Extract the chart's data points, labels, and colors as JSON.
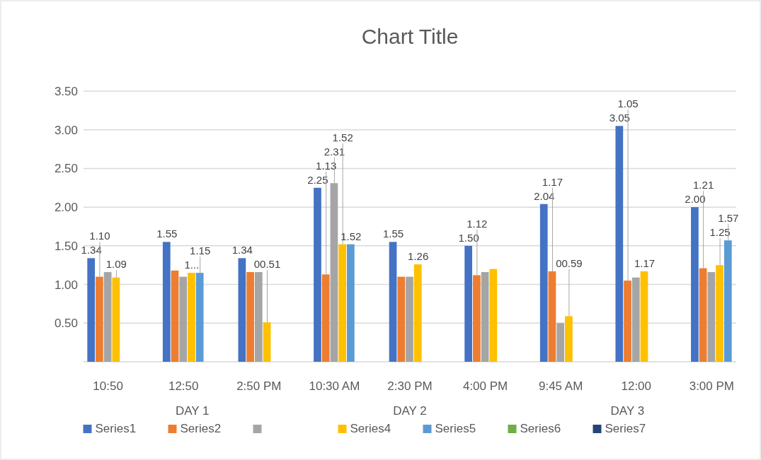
{
  "chart_data": {
    "type": "bar",
    "title": "Chart Title",
    "categories": [
      "10:50",
      "12:50",
      "2:50 PM",
      "10:30 AM",
      "2:30 PM",
      "4:00 PM",
      "9:45 AM",
      "12:00",
      "3:00 PM"
    ],
    "series": [
      {
        "name": "Series1",
        "color": "#4472c4",
        "values": [
          1.34,
          1.55,
          1.34,
          2.25,
          1.55,
          1.5,
          2.04,
          3.05,
          2.0
        ],
        "value_labels": [
          "1.34",
          "1.55",
          "1.34",
          "2.25",
          "1.55",
          "1.50",
          "2.04",
          "3.05",
          "2.00"
        ]
      },
      {
        "name": "Series2",
        "color": "#ed7d31",
        "values": [
          1.1,
          1.18,
          1.16,
          1.13,
          1.1,
          1.12,
          1.17,
          1.05,
          1.21
        ],
        "value_labels": [
          "1.10",
          null,
          null,
          "1.13",
          null,
          "1.12",
          "1.17",
          "1.05",
          "1.21"
        ]
      },
      {
        "color": "#a5a5a5",
        "values": [
          1.16,
          1.1,
          1.16,
          2.31,
          1.1,
          1.16,
          0.5,
          1.09,
          1.16
        ],
        "value_labels": [
          null,
          null,
          null,
          "2.31",
          null,
          null,
          null,
          null,
          null
        ]
      },
      {
        "name": "Series4",
        "color": "#ffc000",
        "values": [
          1.09,
          1.15,
          0.51,
          1.52,
          1.26,
          1.2,
          0.59,
          1.17,
          1.25
        ],
        "value_labels": [
          "1.09",
          "1...",
          "00.51",
          "1.52",
          "1.26",
          null,
          "00.59",
          "1.17",
          "1.25"
        ]
      },
      {
        "name": "Series5",
        "color": "#5b9bd5",
        "values": [
          null,
          1.15,
          null,
          1.52,
          null,
          null,
          null,
          null,
          1.57
        ],
        "value_labels": [
          null,
          "1.15",
          null,
          "1.52",
          null,
          null,
          null,
          null,
          "1.57"
        ]
      },
      {
        "name": "Series6",
        "color": "#70ad47",
        "values": [
          null,
          null,
          null,
          null,
          null,
          null,
          null,
          null,
          null
        ]
      },
      {
        "name": "Series7",
        "color": "#264478",
        "values": [
          null,
          null,
          null,
          null,
          null,
          null,
          null,
          null,
          null
        ]
      }
    ],
    "annotations": [
      "DAY 1",
      "DAY 2",
      "DAY 3"
    ],
    "ylim": [
      0,
      3.5
    ],
    "yticks": [
      {
        "value": 0,
        "label": null
      },
      {
        "value": 0.5,
        "label": "0.50"
      },
      {
        "value": 1,
        "label": "1.00"
      },
      {
        "value": 1.5,
        "label": "1.50"
      },
      {
        "value": 2,
        "label": "2.00"
      },
      {
        "value": 2.5,
        "label": "2.50"
      },
      {
        "value": 3,
        "label": "3.00"
      },
      {
        "value": 3.5,
        "label": "3.50"
      }
    ],
    "grid": "y",
    "legend": "bottom"
  }
}
